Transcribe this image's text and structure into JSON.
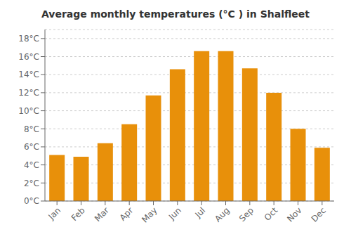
{
  "chart_data": {
    "type": "bar",
    "title": "Average monthly temperatures (°C ) in Shalfleet",
    "categories": [
      "Jan",
      "Feb",
      "Mar",
      "Apr",
      "May",
      "Jun",
      "Jul",
      "Aug",
      "Sep",
      "Oct",
      "Nov",
      "Dec"
    ],
    "values": [
      5.1,
      4.9,
      6.4,
      8.5,
      11.7,
      14.6,
      16.6,
      16.6,
      14.7,
      12.0,
      8.0,
      5.9
    ],
    "color": "#E8900A",
    "ylim": [
      0,
      19
    ],
    "yticks": [
      {
        "value": 0,
        "label": "0°C"
      },
      {
        "value": 2,
        "label": "2°C"
      },
      {
        "value": 4,
        "label": "4°C"
      },
      {
        "value": 6,
        "label": "6°C"
      },
      {
        "value": 8,
        "label": "8°C"
      },
      {
        "value": 10,
        "label": "10°C"
      },
      {
        "value": 12,
        "label": "12°C"
      },
      {
        "value": 14,
        "label": "14°C"
      },
      {
        "value": 16,
        "label": "16°C"
      },
      {
        "value": 18,
        "label": "18°C"
      }
    ],
    "grid": true
  }
}
